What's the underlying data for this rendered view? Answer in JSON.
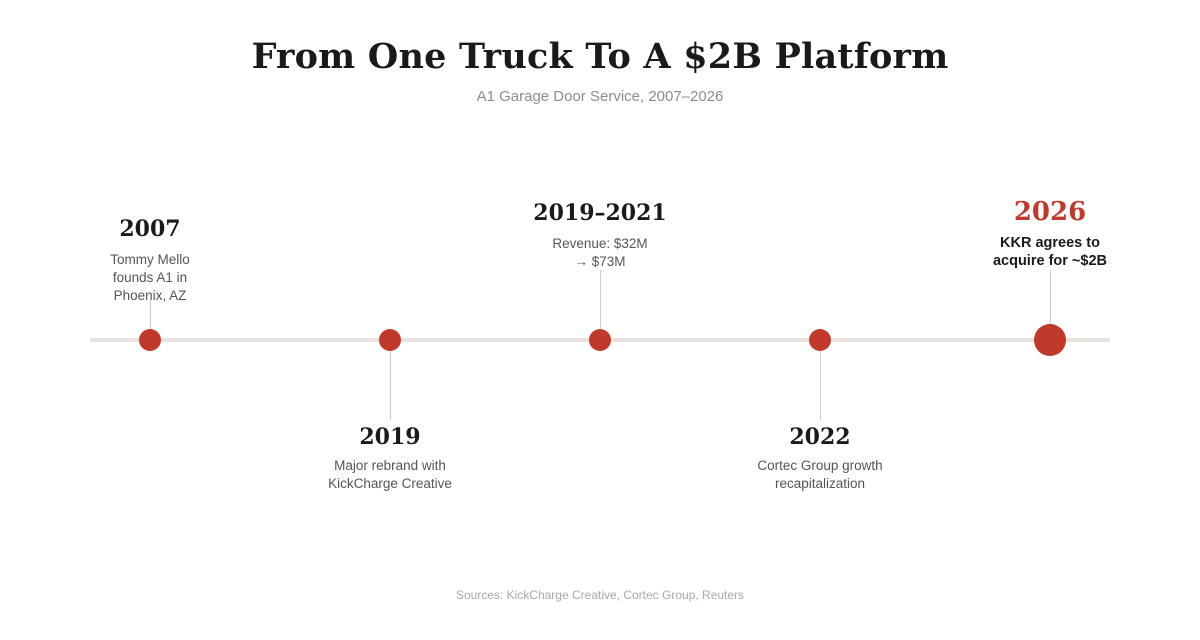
{
  "title": "From One Truck To A $2B Platform",
  "subtitle": "A1 Garage Door Service, 2007–2026",
  "accent_color": "#c0392b",
  "events": [
    {
      "year": "2007",
      "lines": [
        "Tommy Mello",
        "founds A1 in",
        "Phoenix, AZ"
      ],
      "position": "above",
      "highlight": false
    },
    {
      "year": "2019",
      "lines": [
        "Major rebrand with",
        "KickCharge Creative"
      ],
      "position": "below",
      "highlight": false
    },
    {
      "year": "2019–2021",
      "lines": [
        "Revenue: $32M",
        "→ $73M"
      ],
      "position": "above",
      "highlight": false
    },
    {
      "year": "2022",
      "lines": [
        "Cortec Group growth",
        "recapitalization"
      ],
      "position": "below",
      "highlight": false
    },
    {
      "year": "2026",
      "lines": [
        "KKR agrees to",
        "acquire for ~$2B"
      ],
      "position": "above",
      "highlight": true
    }
  ],
  "source": "Sources: KickCharge Creative, Cortec Group, Reuters"
}
